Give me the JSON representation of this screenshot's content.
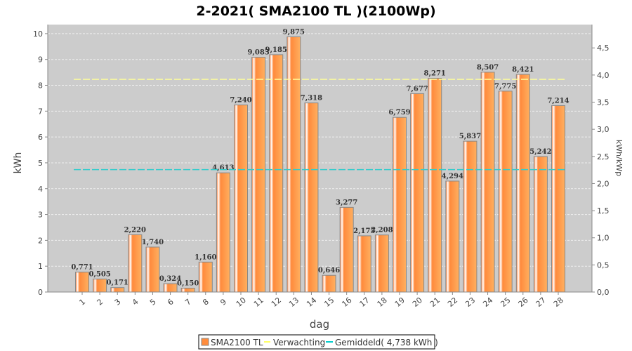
{
  "chart_data": {
    "type": "bar",
    "title": "2-2021( SMA2100 TL )(2100Wp)",
    "xlabel": "dag",
    "ylabel": "kWh",
    "y2label": "kWh/kWp",
    "ylim": [
      0,
      10.35
    ],
    "y2lim": [
      0,
      4.93
    ],
    "yticks": [
      "0",
      "1",
      "2",
      "3",
      "4",
      "5",
      "6",
      "7",
      "8",
      "9",
      "10"
    ],
    "y2ticks": [
      "0,0",
      "0,5",
      "1,0",
      "1,5",
      "2,0",
      "2,5",
      "3,0",
      "3,5",
      "4,0",
      "4,5"
    ],
    "grid": true,
    "categories": [
      "1",
      "2",
      "3",
      "4",
      "5",
      "6",
      "7",
      "8",
      "9",
      "10",
      "11",
      "12",
      "13",
      "14",
      "15",
      "16",
      "17",
      "18",
      "19",
      "20",
      "21",
      "22",
      "23",
      "24",
      "25",
      "26",
      "27",
      "28"
    ],
    "values": [
      0.771,
      0.505,
      0.171,
      2.22,
      1.74,
      0.324,
      0.15,
      1.16,
      4.613,
      7.24,
      9.083,
      9.185,
      9.875,
      7.318,
      0.646,
      3.277,
      2.175,
      2.208,
      6.759,
      7.677,
      8.271,
      4.294,
      5.837,
      8.507,
      7.775,
      8.421,
      5.242,
      7.214
    ],
    "value_labels": [
      "0,771",
      "0,505",
      "0,171",
      "2,220",
      "1,740",
      "0,324",
      "0,150",
      "1,160",
      "4,613",
      "7,240",
      "9,083",
      "9,185",
      "9,875",
      "7,318",
      "0,646",
      "3,277",
      "2,175",
      "2,208",
      "6,759",
      "7,677",
      "8,271",
      "4,294",
      "5,837",
      "8,507",
      "7,775",
      "8,421",
      "5,242",
      "7,214"
    ],
    "expected": 8.23,
    "average": 4.738,
    "legend": [
      "SMA2100 TL",
      "Verwachting",
      "Gemiddeld( 4,738 kWh )"
    ],
    "legend_position": "bottom",
    "colors": {
      "bar": "#ff8c3c",
      "expected": "#ffff99",
      "average": "#33cccc",
      "plot_bg": "#cccccc"
    }
  }
}
